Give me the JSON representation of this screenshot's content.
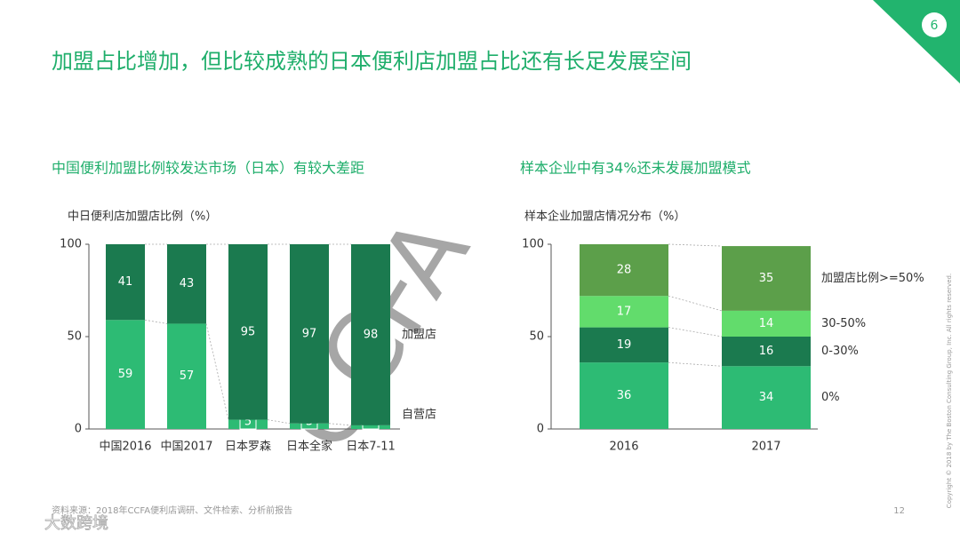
{
  "page": {
    "title": "加盟占比增加，但比较成熟的日本便利店加盟占比还有长足发展空间",
    "page_number": "6",
    "source": "资料来源：2018年CCFA便利店调研、文件检索、分析前报告",
    "footer_number": "12",
    "copyright": "Copyright © 2018 by The Boston Consulting Group, Inc. All rights reserved.",
    "watermark": "CCFA",
    "logo": "大数跨境"
  },
  "chart_data": [
    {
      "type": "stacked_bar",
      "subtitle": "中国便利加盟比例较发达市场（日本）有较大差距",
      "title": "中日便利店加盟店比例（%）",
      "categories": [
        "中国2016",
        "中国2017",
        "日本罗森",
        "日本全家",
        "日本7-11"
      ],
      "series": [
        {
          "name": "自营店",
          "color": "#2dbb74",
          "values": [
            59,
            57,
            5,
            3,
            2
          ]
        },
        {
          "name": "加盟店",
          "color": "#1b7a4f",
          "values": [
            41,
            43,
            95,
            97,
            98
          ]
        }
      ],
      "ylim": [
        0,
        100
      ],
      "yticks": [
        0,
        50,
        100
      ]
    },
    {
      "type": "stacked_bar",
      "subtitle": "样本企业中有34%还未发展加盟模式",
      "title": "样本企业加盟店情况分布（%）",
      "categories": [
        "2016",
        "2017"
      ],
      "series": [
        {
          "name": "0%",
          "color": "#2dbb74",
          "values": [
            36,
            34
          ]
        },
        {
          "name": "0-30%",
          "color": "#1b7a4f",
          "values": [
            19,
            16
          ]
        },
        {
          "name": "30-50%",
          "color": "#62dc6c",
          "values": [
            17,
            14
          ]
        },
        {
          "name": "加盟店比例>=50%",
          "color": "#5c9f4a",
          "values": [
            28,
            35
          ]
        }
      ],
      "ylim": [
        0,
        100
      ],
      "yticks": [
        0,
        50,
        100
      ]
    }
  ]
}
